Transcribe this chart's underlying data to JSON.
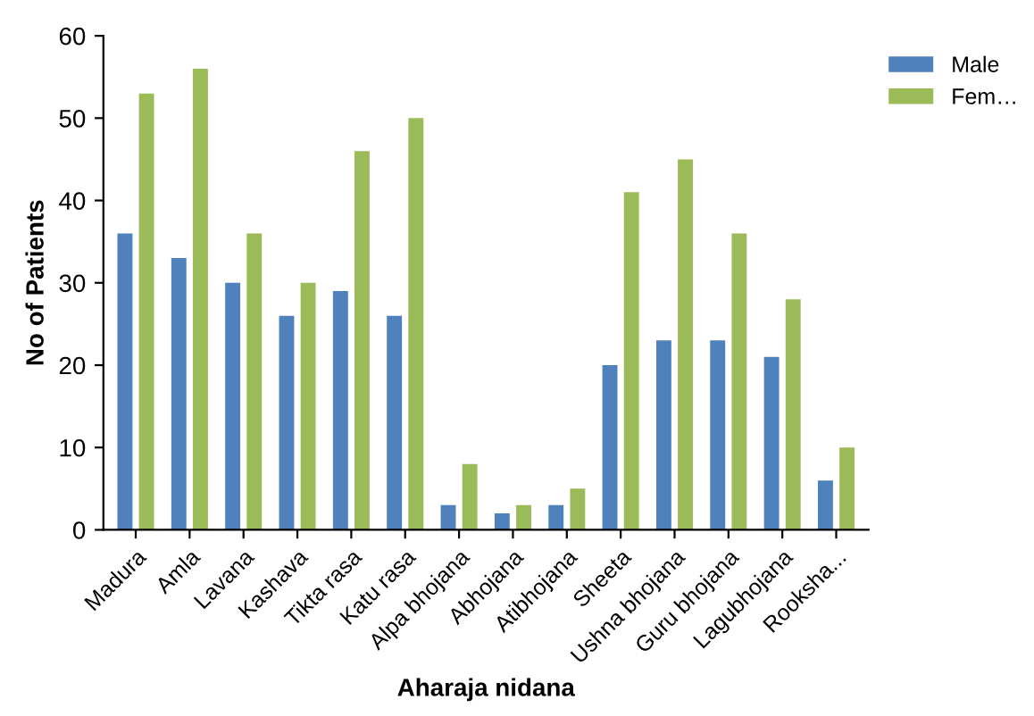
{
  "chart_data": {
    "type": "bar",
    "xlabel": "Aharaja nidana",
    "ylabel": "No of Patients",
    "categories": [
      "Madura",
      "Amla",
      "Lavana",
      "Kashava",
      "Tikta rasa",
      "Katu rasa",
      "Alpa bhojana",
      "Abhojana",
      "Atibhojana",
      "Sheeta",
      "Ushna bhojana",
      "Guru bhojana",
      "Lagubhojana",
      "Rooksha..."
    ],
    "series": [
      {
        "name": "Male",
        "color": "#4f81bd",
        "values": [
          36,
          33,
          30,
          26,
          29,
          26,
          3,
          2,
          3,
          20,
          23,
          23,
          21,
          6
        ]
      },
      {
        "name": "Fem…",
        "color": "#9bbb59",
        "values": [
          53,
          56,
          36,
          30,
          46,
          50,
          8,
          3,
          5,
          41,
          45,
          36,
          28,
          10
        ]
      }
    ],
    "ylim": [
      0,
      60
    ],
    "yticks": [
      0,
      10,
      20,
      30,
      40,
      50,
      60
    ],
    "grid": false,
    "legend": "top right"
  }
}
